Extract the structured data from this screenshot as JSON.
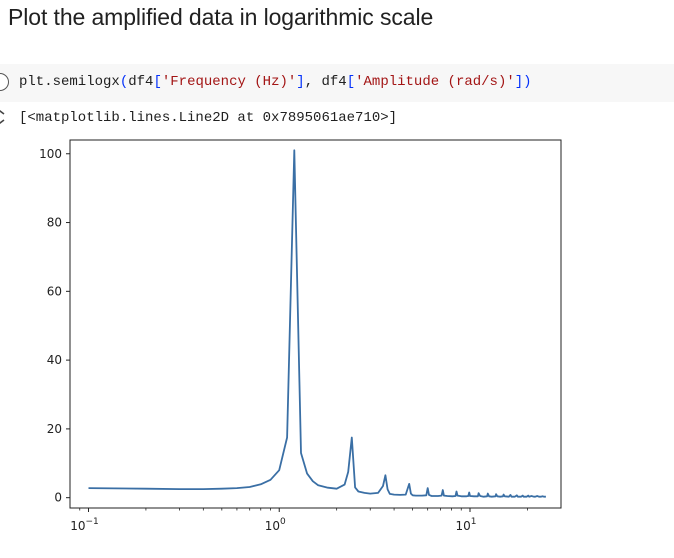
{
  "notebook": {
    "heading": "Plot the amplified data in logarithmic scale",
    "cell": {
      "code": {
        "prefix": "plt.semilogx",
        "p1": "(",
        "obj1": "df4",
        "b1": "[",
        "arg1": "'Frequency (Hz)'",
        "b2": "]",
        "sep": ", ",
        "obj2": "df4",
        "b3": "[",
        "arg2": "'Amplitude (rad/s)'",
        "b4": "]",
        "p2": ")"
      },
      "output_text": "[<matplotlib.lines.Line2D at 0x7895061ae710>]"
    }
  },
  "chart_data": {
    "type": "line",
    "xscale": "log",
    "xlim": [
      0.08,
      30
    ],
    "ylim": [
      -3,
      104
    ],
    "y_ticks": [
      0,
      20,
      40,
      60,
      80,
      100
    ],
    "y_tick_labels": [
      "0",
      "20",
      "40",
      "60",
      "80",
      "100"
    ],
    "x_ticks": [
      0.1,
      1,
      10
    ],
    "x_tick_labels": [
      {
        "base": "10",
        "exp": "−1"
      },
      {
        "base": "10",
        "exp": "0"
      },
      {
        "base": "10",
        "exp": "1"
      }
    ],
    "grid": false,
    "line_color": "#3a6fa5",
    "series": [
      {
        "x": [
          0.1,
          0.2,
          0.3,
          0.4,
          0.5,
          0.6,
          0.7,
          0.8,
          0.9,
          1.0,
          1.1,
          1.2,
          1.3,
          1.4,
          1.5,
          1.6,
          1.8,
          2.0,
          2.2,
          2.3,
          2.4,
          2.5,
          2.6,
          2.8,
          3.0,
          3.3,
          3.5,
          3.6,
          3.7,
          3.8,
          4.0,
          4.3,
          4.6,
          4.8,
          4.9,
          5.0,
          5.2,
          5.6,
          5.9,
          6.0,
          6.1,
          6.3,
          6.8,
          7.1,
          7.2,
          7.3,
          7.6,
          8.1,
          8.4,
          8.5,
          8.6,
          9.0,
          9.6,
          9.8,
          9.9,
          10.0,
          10.5,
          11.0,
          11.1,
          11.3,
          11.8,
          12.3,
          12.4,
          12.6,
          13.0,
          13.6,
          13.7,
          13.9,
          14.4,
          14.9,
          15.0,
          15.2,
          16.0,
          16.3,
          16.5,
          17.2,
          17.6,
          17.8,
          18.5,
          18.9,
          19.1,
          19.8,
          20.2,
          20.4,
          21.0,
          21.6,
          22.0,
          22.5,
          23.0,
          23.5,
          24.0,
          24.5,
          25.0
        ],
        "y": [
          2.8,
          2.6,
          2.5,
          2.5,
          2.6,
          2.8,
          3.1,
          3.9,
          5.2,
          8.0,
          17.5,
          101.0,
          13.0,
          7.0,
          4.8,
          3.6,
          2.9,
          2.6,
          3.8,
          7.5,
          17.5,
          3.0,
          1.8,
          1.4,
          1.2,
          1.4,
          3.4,
          6.5,
          2.4,
          1.1,
          0.9,
          0.8,
          0.9,
          4.0,
          1.2,
          0.7,
          0.6,
          0.6,
          0.7,
          2.8,
          0.8,
          0.5,
          0.5,
          0.6,
          2.2,
          0.6,
          0.5,
          0.4,
          0.5,
          1.8,
          0.6,
          0.4,
          0.4,
          0.5,
          1.5,
          0.5,
          0.4,
          0.4,
          1.3,
          0.5,
          0.3,
          0.4,
          1.2,
          0.4,
          0.3,
          0.4,
          1.0,
          0.4,
          0.3,
          0.4,
          0.9,
          0.4,
          0.3,
          0.8,
          0.3,
          0.3,
          0.7,
          0.3,
          0.3,
          0.6,
          0.3,
          0.3,
          0.6,
          0.3,
          0.5,
          0.3,
          0.3,
          0.5,
          0.3,
          0.3,
          0.4,
          0.3,
          0.3
        ]
      }
    ]
  }
}
